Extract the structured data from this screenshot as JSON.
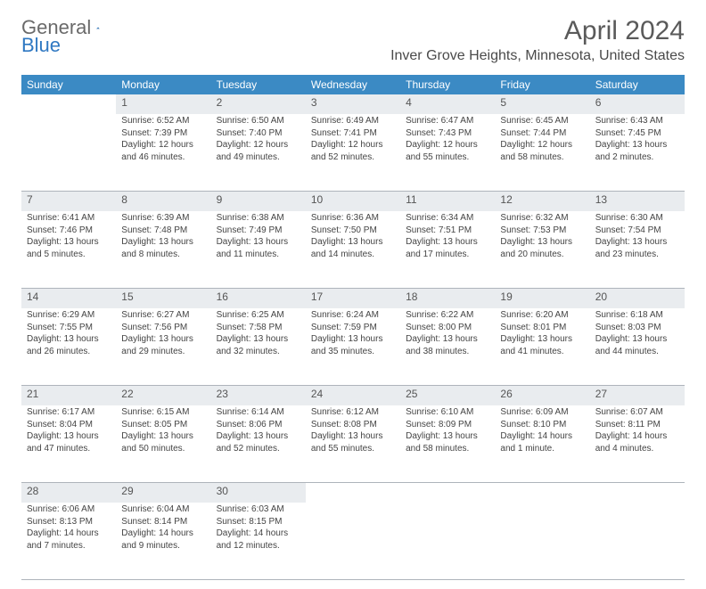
{
  "brand": {
    "word1": "General",
    "word2": "Blue"
  },
  "title": "April 2024",
  "location": "Inver Grove Heights, Minnesota, United States",
  "colors": {
    "header_bg": "#3b8ac4",
    "header_text": "#ffffff",
    "daynum_bg": "#e9ecef",
    "border": "#aeb4bb",
    "text": "#444444"
  },
  "weekdays": [
    "Sunday",
    "Monday",
    "Tuesday",
    "Wednesday",
    "Thursday",
    "Friday",
    "Saturday"
  ],
  "weeks": [
    [
      null,
      {
        "n": "1",
        "sr": "Sunrise: 6:52 AM",
        "ss": "Sunset: 7:39 PM",
        "dl1": "Daylight: 12 hours",
        "dl2": "and 46 minutes."
      },
      {
        "n": "2",
        "sr": "Sunrise: 6:50 AM",
        "ss": "Sunset: 7:40 PM",
        "dl1": "Daylight: 12 hours",
        "dl2": "and 49 minutes."
      },
      {
        "n": "3",
        "sr": "Sunrise: 6:49 AM",
        "ss": "Sunset: 7:41 PM",
        "dl1": "Daylight: 12 hours",
        "dl2": "and 52 minutes."
      },
      {
        "n": "4",
        "sr": "Sunrise: 6:47 AM",
        "ss": "Sunset: 7:43 PM",
        "dl1": "Daylight: 12 hours",
        "dl2": "and 55 minutes."
      },
      {
        "n": "5",
        "sr": "Sunrise: 6:45 AM",
        "ss": "Sunset: 7:44 PM",
        "dl1": "Daylight: 12 hours",
        "dl2": "and 58 minutes."
      },
      {
        "n": "6",
        "sr": "Sunrise: 6:43 AM",
        "ss": "Sunset: 7:45 PM",
        "dl1": "Daylight: 13 hours",
        "dl2": "and 2 minutes."
      }
    ],
    [
      {
        "n": "7",
        "sr": "Sunrise: 6:41 AM",
        "ss": "Sunset: 7:46 PM",
        "dl1": "Daylight: 13 hours",
        "dl2": "and 5 minutes."
      },
      {
        "n": "8",
        "sr": "Sunrise: 6:39 AM",
        "ss": "Sunset: 7:48 PM",
        "dl1": "Daylight: 13 hours",
        "dl2": "and 8 minutes."
      },
      {
        "n": "9",
        "sr": "Sunrise: 6:38 AM",
        "ss": "Sunset: 7:49 PM",
        "dl1": "Daylight: 13 hours",
        "dl2": "and 11 minutes."
      },
      {
        "n": "10",
        "sr": "Sunrise: 6:36 AM",
        "ss": "Sunset: 7:50 PM",
        "dl1": "Daylight: 13 hours",
        "dl2": "and 14 minutes."
      },
      {
        "n": "11",
        "sr": "Sunrise: 6:34 AM",
        "ss": "Sunset: 7:51 PM",
        "dl1": "Daylight: 13 hours",
        "dl2": "and 17 minutes."
      },
      {
        "n": "12",
        "sr": "Sunrise: 6:32 AM",
        "ss": "Sunset: 7:53 PM",
        "dl1": "Daylight: 13 hours",
        "dl2": "and 20 minutes."
      },
      {
        "n": "13",
        "sr": "Sunrise: 6:30 AM",
        "ss": "Sunset: 7:54 PM",
        "dl1": "Daylight: 13 hours",
        "dl2": "and 23 minutes."
      }
    ],
    [
      {
        "n": "14",
        "sr": "Sunrise: 6:29 AM",
        "ss": "Sunset: 7:55 PM",
        "dl1": "Daylight: 13 hours",
        "dl2": "and 26 minutes."
      },
      {
        "n": "15",
        "sr": "Sunrise: 6:27 AM",
        "ss": "Sunset: 7:56 PM",
        "dl1": "Daylight: 13 hours",
        "dl2": "and 29 minutes."
      },
      {
        "n": "16",
        "sr": "Sunrise: 6:25 AM",
        "ss": "Sunset: 7:58 PM",
        "dl1": "Daylight: 13 hours",
        "dl2": "and 32 minutes."
      },
      {
        "n": "17",
        "sr": "Sunrise: 6:24 AM",
        "ss": "Sunset: 7:59 PM",
        "dl1": "Daylight: 13 hours",
        "dl2": "and 35 minutes."
      },
      {
        "n": "18",
        "sr": "Sunrise: 6:22 AM",
        "ss": "Sunset: 8:00 PM",
        "dl1": "Daylight: 13 hours",
        "dl2": "and 38 minutes."
      },
      {
        "n": "19",
        "sr": "Sunrise: 6:20 AM",
        "ss": "Sunset: 8:01 PM",
        "dl1": "Daylight: 13 hours",
        "dl2": "and 41 minutes."
      },
      {
        "n": "20",
        "sr": "Sunrise: 6:18 AM",
        "ss": "Sunset: 8:03 PM",
        "dl1": "Daylight: 13 hours",
        "dl2": "and 44 minutes."
      }
    ],
    [
      {
        "n": "21",
        "sr": "Sunrise: 6:17 AM",
        "ss": "Sunset: 8:04 PM",
        "dl1": "Daylight: 13 hours",
        "dl2": "and 47 minutes."
      },
      {
        "n": "22",
        "sr": "Sunrise: 6:15 AM",
        "ss": "Sunset: 8:05 PM",
        "dl1": "Daylight: 13 hours",
        "dl2": "and 50 minutes."
      },
      {
        "n": "23",
        "sr": "Sunrise: 6:14 AM",
        "ss": "Sunset: 8:06 PM",
        "dl1": "Daylight: 13 hours",
        "dl2": "and 52 minutes."
      },
      {
        "n": "24",
        "sr": "Sunrise: 6:12 AM",
        "ss": "Sunset: 8:08 PM",
        "dl1": "Daylight: 13 hours",
        "dl2": "and 55 minutes."
      },
      {
        "n": "25",
        "sr": "Sunrise: 6:10 AM",
        "ss": "Sunset: 8:09 PM",
        "dl1": "Daylight: 13 hours",
        "dl2": "and 58 minutes."
      },
      {
        "n": "26",
        "sr": "Sunrise: 6:09 AM",
        "ss": "Sunset: 8:10 PM",
        "dl1": "Daylight: 14 hours",
        "dl2": "and 1 minute."
      },
      {
        "n": "27",
        "sr": "Sunrise: 6:07 AM",
        "ss": "Sunset: 8:11 PM",
        "dl1": "Daylight: 14 hours",
        "dl2": "and 4 minutes."
      }
    ],
    [
      {
        "n": "28",
        "sr": "Sunrise: 6:06 AM",
        "ss": "Sunset: 8:13 PM",
        "dl1": "Daylight: 14 hours",
        "dl2": "and 7 minutes."
      },
      {
        "n": "29",
        "sr": "Sunrise: 6:04 AM",
        "ss": "Sunset: 8:14 PM",
        "dl1": "Daylight: 14 hours",
        "dl2": "and 9 minutes."
      },
      {
        "n": "30",
        "sr": "Sunrise: 6:03 AM",
        "ss": "Sunset: 8:15 PM",
        "dl1": "Daylight: 14 hours",
        "dl2": "and 12 minutes."
      },
      null,
      null,
      null,
      null
    ]
  ]
}
